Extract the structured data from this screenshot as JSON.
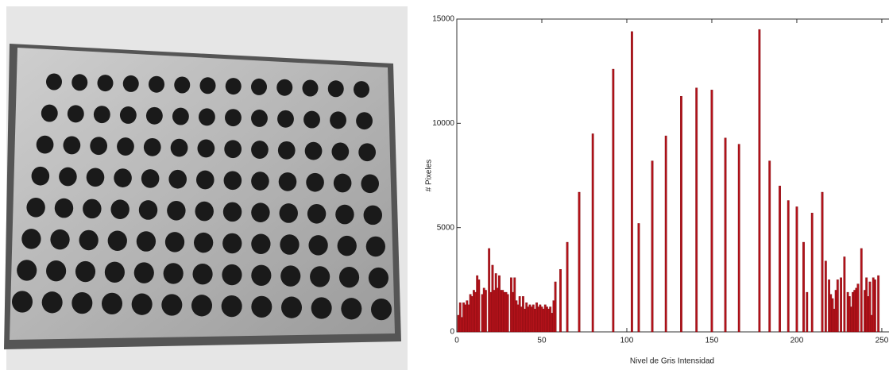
{
  "chart_data": {
    "type": "bar",
    "xlabel": "Nivel de Gris  Intensidad",
    "ylabel": "# Pixeles",
    "x": [
      1,
      2,
      3,
      4,
      5,
      6,
      7,
      8,
      9,
      10,
      11,
      12,
      13,
      15,
      16,
      17,
      19,
      20,
      21,
      22,
      23,
      24,
      25,
      26,
      27,
      28,
      29,
      30,
      32,
      33,
      34,
      35,
      36,
      37,
      38,
      39,
      40,
      41,
      42,
      43,
      44,
      45,
      46,
      47,
      48,
      49,
      50,
      51,
      52,
      53,
      54,
      55,
      56,
      57,
      58,
      61,
      65,
      72,
      80,
      92,
      103,
      107,
      115,
      123,
      132,
      141,
      150,
      158,
      166,
      178,
      184,
      190,
      195,
      200,
      204,
      206,
      209,
      215,
      217,
      219,
      220,
      221,
      222,
      223,
      224,
      226,
      228,
      230,
      231,
      232,
      233,
      234,
      235,
      236,
      238,
      240,
      241,
      242,
      243,
      244,
      245,
      246,
      248
    ],
    "values": [
      800,
      1400,
      700,
      1400,
      1300,
      1500,
      1300,
      1800,
      1700,
      2000,
      1900,
      2700,
      2500,
      1800,
      2100,
      2000,
      4000,
      1900,
      3200,
      2000,
      2800,
      2100,
      2700,
      2000,
      2000,
      1900,
      1900,
      1800,
      2600,
      1900,
      2600,
      1500,
      1300,
      1700,
      1200,
      1700,
      1100,
      1400,
      1200,
      1300,
      1200,
      1300,
      1100,
      1400,
      1200,
      1300,
      1200,
      1100,
      1300,
      1200,
      1100,
      1200,
      900,
      1500,
      2400,
      3000,
      4300,
      6700,
      9500,
      12600,
      14400,
      5200,
      8200,
      9400,
      11300,
      11700,
      11600,
      9300,
      9000,
      14500,
      8200,
      7000,
      6300,
      6000,
      4300,
      1900,
      5700,
      6700,
      3400,
      2500,
      1800,
      1600,
      1100,
      2000,
      2500,
      2600,
      3600,
      1900,
      1700,
      1200,
      1900,
      2000,
      2100,
      2300,
      4000,
      2000,
      2600,
      1700,
      2400,
      800,
      2600,
      2500,
      2700
    ],
    "color": "#b3121a",
    "xlim": [
      0,
      254
    ],
    "ylim": [
      0,
      15000
    ],
    "xticks": [
      0,
      50,
      100,
      150,
      200,
      250
    ],
    "yticks": [
      0,
      5000,
      10000,
      15000
    ]
  }
}
